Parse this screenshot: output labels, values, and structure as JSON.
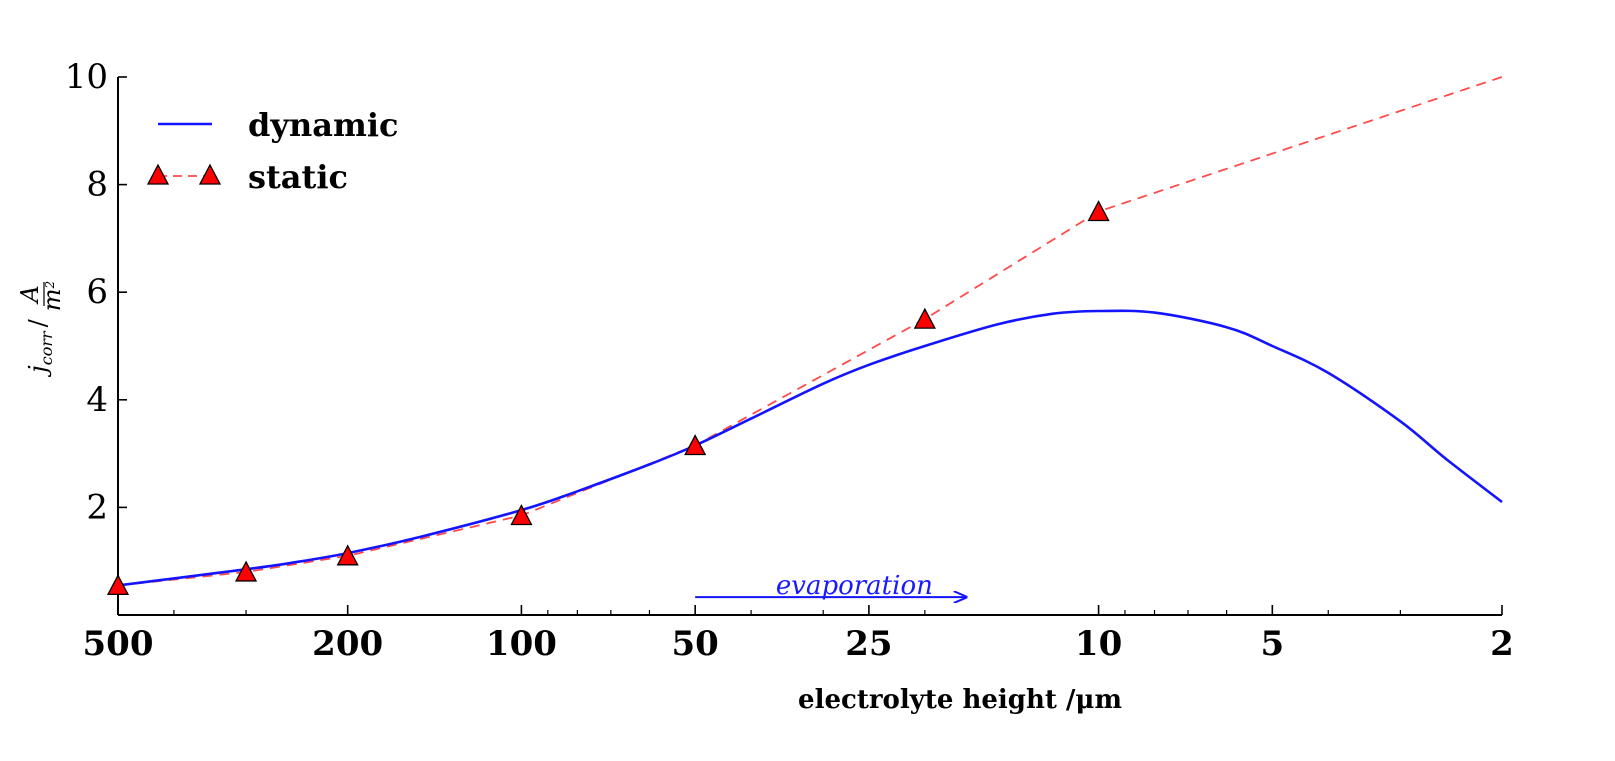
{
  "chart_data": {
    "type": "line",
    "title": "",
    "xlabel": "electrolyte height /μm",
    "ylabel": "j_corr / A/m²",
    "ylabel_parts": {
      "j": "j",
      "sub": "corr",
      "slash": "/",
      "num": "A",
      "den": "m",
      "sup": "2"
    },
    "x_scale": "log",
    "x_reversed": true,
    "xlim": [
      500,
      2
    ],
    "ylim": [
      0,
      10
    ],
    "xticks": [
      500,
      200,
      100,
      50,
      25,
      10,
      5,
      2
    ],
    "xtick_labels": [
      "500",
      "200",
      "100",
      "50",
      "25",
      "10",
      "5",
      "2"
    ],
    "yticks": [
      2,
      4,
      6,
      8,
      10
    ],
    "ytick_labels": [
      "2",
      "4",
      "6",
      "8",
      "10"
    ],
    "legend_position": "top-left",
    "series": [
      {
        "name": "dynamic",
        "style": "solid",
        "color": "#1414ff",
        "marker": "none",
        "x": [
          500,
          400,
          300,
          250,
          200,
          150,
          100,
          80,
          60,
          50,
          40,
          30,
          25,
          20,
          15,
          12,
          10,
          8,
          6,
          5,
          4,
          3,
          2.5,
          2
        ],
        "y": [
          0.55,
          0.68,
          0.85,
          0.97,
          1.15,
          1.45,
          1.95,
          2.3,
          2.8,
          3.15,
          3.65,
          4.3,
          4.65,
          5.0,
          5.4,
          5.6,
          5.65,
          5.62,
          5.35,
          5.0,
          4.5,
          3.6,
          2.9,
          2.1
        ]
      },
      {
        "name": "static",
        "style": "dashed",
        "color": "#ff4a4a",
        "marker": "triangle",
        "marker_color": "#ff0000",
        "x": [
          500,
          300,
          200,
          100,
          50,
          20,
          10,
          2
        ],
        "y": [
          0.55,
          0.8,
          1.1,
          1.85,
          3.15,
          5.5,
          7.5,
          10.0
        ],
        "marker_x": [
          500,
          300,
          200,
          100,
          50,
          20,
          10
        ],
        "marker_y": [
          0.55,
          0.8,
          1.1,
          1.85,
          3.15,
          5.5,
          7.5
        ]
      }
    ],
    "annotations": [
      {
        "text": "evaporation",
        "arrow_from_x": 50,
        "arrow_to_x": 17,
        "y": 0.5,
        "color": "#1414ff"
      }
    ]
  }
}
